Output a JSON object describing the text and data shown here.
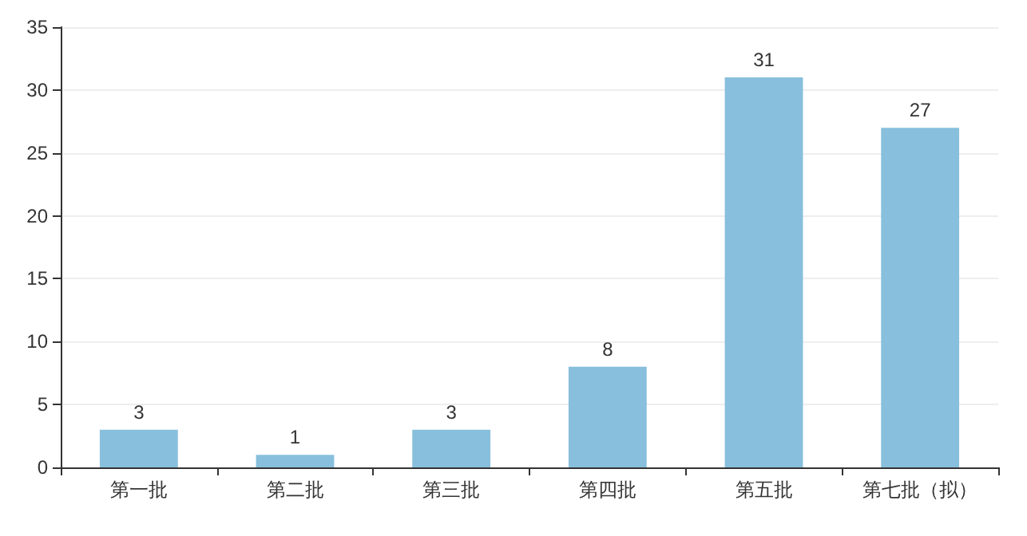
{
  "chart_data": {
    "type": "bar",
    "categories": [
      "第一批",
      "第二批",
      "第三批",
      "第四批",
      "第五批",
      "第七批（拟）"
    ],
    "values": [
      3,
      1,
      3,
      8,
      31,
      27
    ],
    "color": "#88bfdc",
    "ylim": [
      0,
      35
    ],
    "yticks": [
      0,
      5,
      10,
      15,
      20,
      25,
      30,
      35
    ],
    "grid": "y",
    "data_labels": true
  }
}
